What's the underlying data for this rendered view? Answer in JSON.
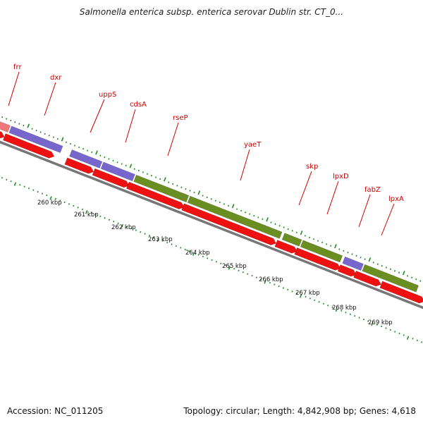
{
  "title": "Salmonella enterica subsp. enterica serovar Dublin str. CT_0...",
  "footer": {
    "accession": "Accession: NC_011205",
    "summary": "Topology: circular; Length: 4,842,908 bp; Genes: 4,618"
  },
  "colors": {
    "cds_red": "#ee1111",
    "cds_light_red": "#ee7777",
    "gene_purple": "#7766cc",
    "gene_olive": "#6b8e23",
    "backbone": "#777777",
    "tick_green": "#228b22",
    "label_red": "#cc0000"
  },
  "gene_labels": [
    "frr",
    "dxr",
    "uppS",
    "cdsA",
    "rseP",
    "yaeT",
    "skp",
    "lpxD",
    "fabZ",
    "lpxA"
  ],
  "kbp_labels": [
    "260 kbp",
    "261 kbp",
    "262 kbp",
    "263 kbp",
    "264 kbp",
    "265 kbp",
    "266 kbp",
    "267 kbp",
    "268 kbp",
    "269 kbp"
  ]
}
